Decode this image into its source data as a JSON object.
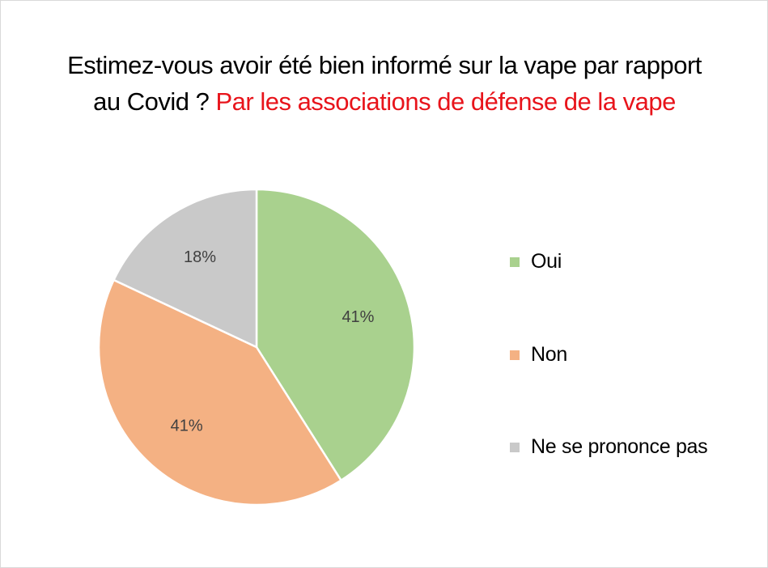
{
  "title": {
    "line1": "Estimez-vous avoir été bien informé sur la vape par rapport",
    "line2_prefix": "au Covid ? ",
    "line2_highlight": "Par les associations de défense de la vape"
  },
  "colors": {
    "highlight": "#e8141b",
    "oui": "#a9d18e",
    "non": "#f4b183",
    "ne_se_prononce_pas": "#c9c9c9"
  },
  "chart_data": {
    "type": "pie",
    "title": "Estimez-vous avoir été bien informé sur la vape par rapport au Covid ? Par les associations de défense de la vape",
    "categories": [
      "Oui",
      "Non",
      "Ne se prononce pas"
    ],
    "values": [
      41,
      41,
      18
    ],
    "data_labels": [
      "41%",
      "41%",
      "18%"
    ],
    "colors": [
      "#a9d18e",
      "#f4b183",
      "#c9c9c9"
    ],
    "start_angle_deg": 0,
    "direction": "clockwise",
    "legend": "right"
  }
}
